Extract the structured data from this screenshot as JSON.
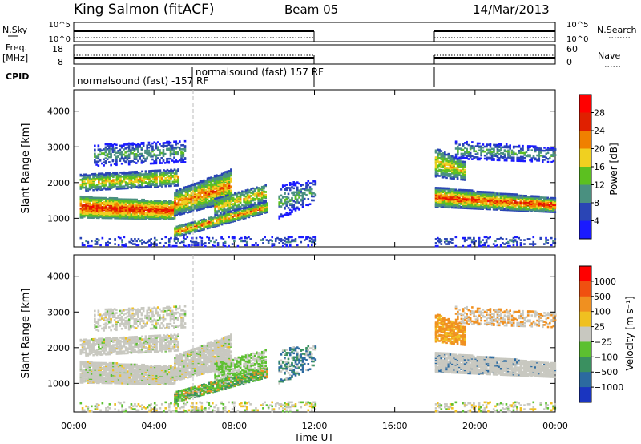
{
  "header": {
    "station": "King Salmon (fitACF)",
    "beam": "Beam 05",
    "date": "14/Mar/2013"
  },
  "params": {
    "nsky_label": "N.Sky",
    "nsky_ticks": [
      "10^5",
      "10^0"
    ],
    "nsearch_label": "N.Search",
    "nsearch_ticks": [
      "10^5",
      "10^0"
    ],
    "freq_label": "Freq.",
    "freq_unit": "[MHz]",
    "freq_ticks": [
      "18",
      "8"
    ],
    "nave_label": "Nave",
    "nave_ticks": [
      "60",
      "0"
    ],
    "cpid_label": "CPID",
    "cpid_entries": [
      "normalsound (fast) -157 RF",
      "normalsound (fast) 157 RF"
    ]
  },
  "chart_data": [
    {
      "type": "heatmap",
      "name": "power",
      "ylabel": "Slant Range [km]",
      "yticks": [
        1000,
        2000,
        3000,
        4000
      ],
      "ylim": [
        200,
        4600
      ],
      "xlim": [
        0,
        24
      ],
      "xticks": [
        "00:00",
        "04:00",
        "08:00",
        "12:00",
        "16:00",
        "20:00",
        "00:00"
      ],
      "data_gaps_ut": [
        [
          12.0,
          18.0
        ]
      ],
      "colorbar": {
        "label": "Power [dB]",
        "ticks": [
          "4",
          "8",
          "12",
          "16",
          "20",
          "24",
          "28"
        ],
        "colors": [
          "#1a1aff",
          "#2a45b5",
          "#4a9080",
          "#5cc020",
          "#f0d020",
          "#f08000",
          "#e02000",
          "#ff0000"
        ]
      }
    },
    {
      "type": "heatmap",
      "name": "velocity",
      "ylabel": "Slant Range [km]",
      "yticks": [
        1000,
        2000,
        3000,
        4000
      ],
      "ylim": [
        200,
        4600
      ],
      "xlim": [
        0,
        24
      ],
      "xlabel": "Time UT",
      "xticks": [
        "00:00",
        "04:00",
        "08:00",
        "12:00",
        "16:00",
        "20:00",
        "00:00"
      ],
      "data_gaps_ut": [
        [
          12.0,
          18.0
        ]
      ],
      "colorbar": {
        "label": "Velocity [m s⁻¹]",
        "ticks": [
          "1000",
          "500",
          "100",
          "25",
          "−25",
          "−100",
          "−500",
          "−1000"
        ],
        "colors": [
          "#1a35c0",
          "#2c6aa0",
          "#3a9060",
          "#5cc030",
          "#c8c8c0",
          "#f0c020",
          "#f09020",
          "#f05010",
          "#ff0000"
        ]
      }
    }
  ]
}
